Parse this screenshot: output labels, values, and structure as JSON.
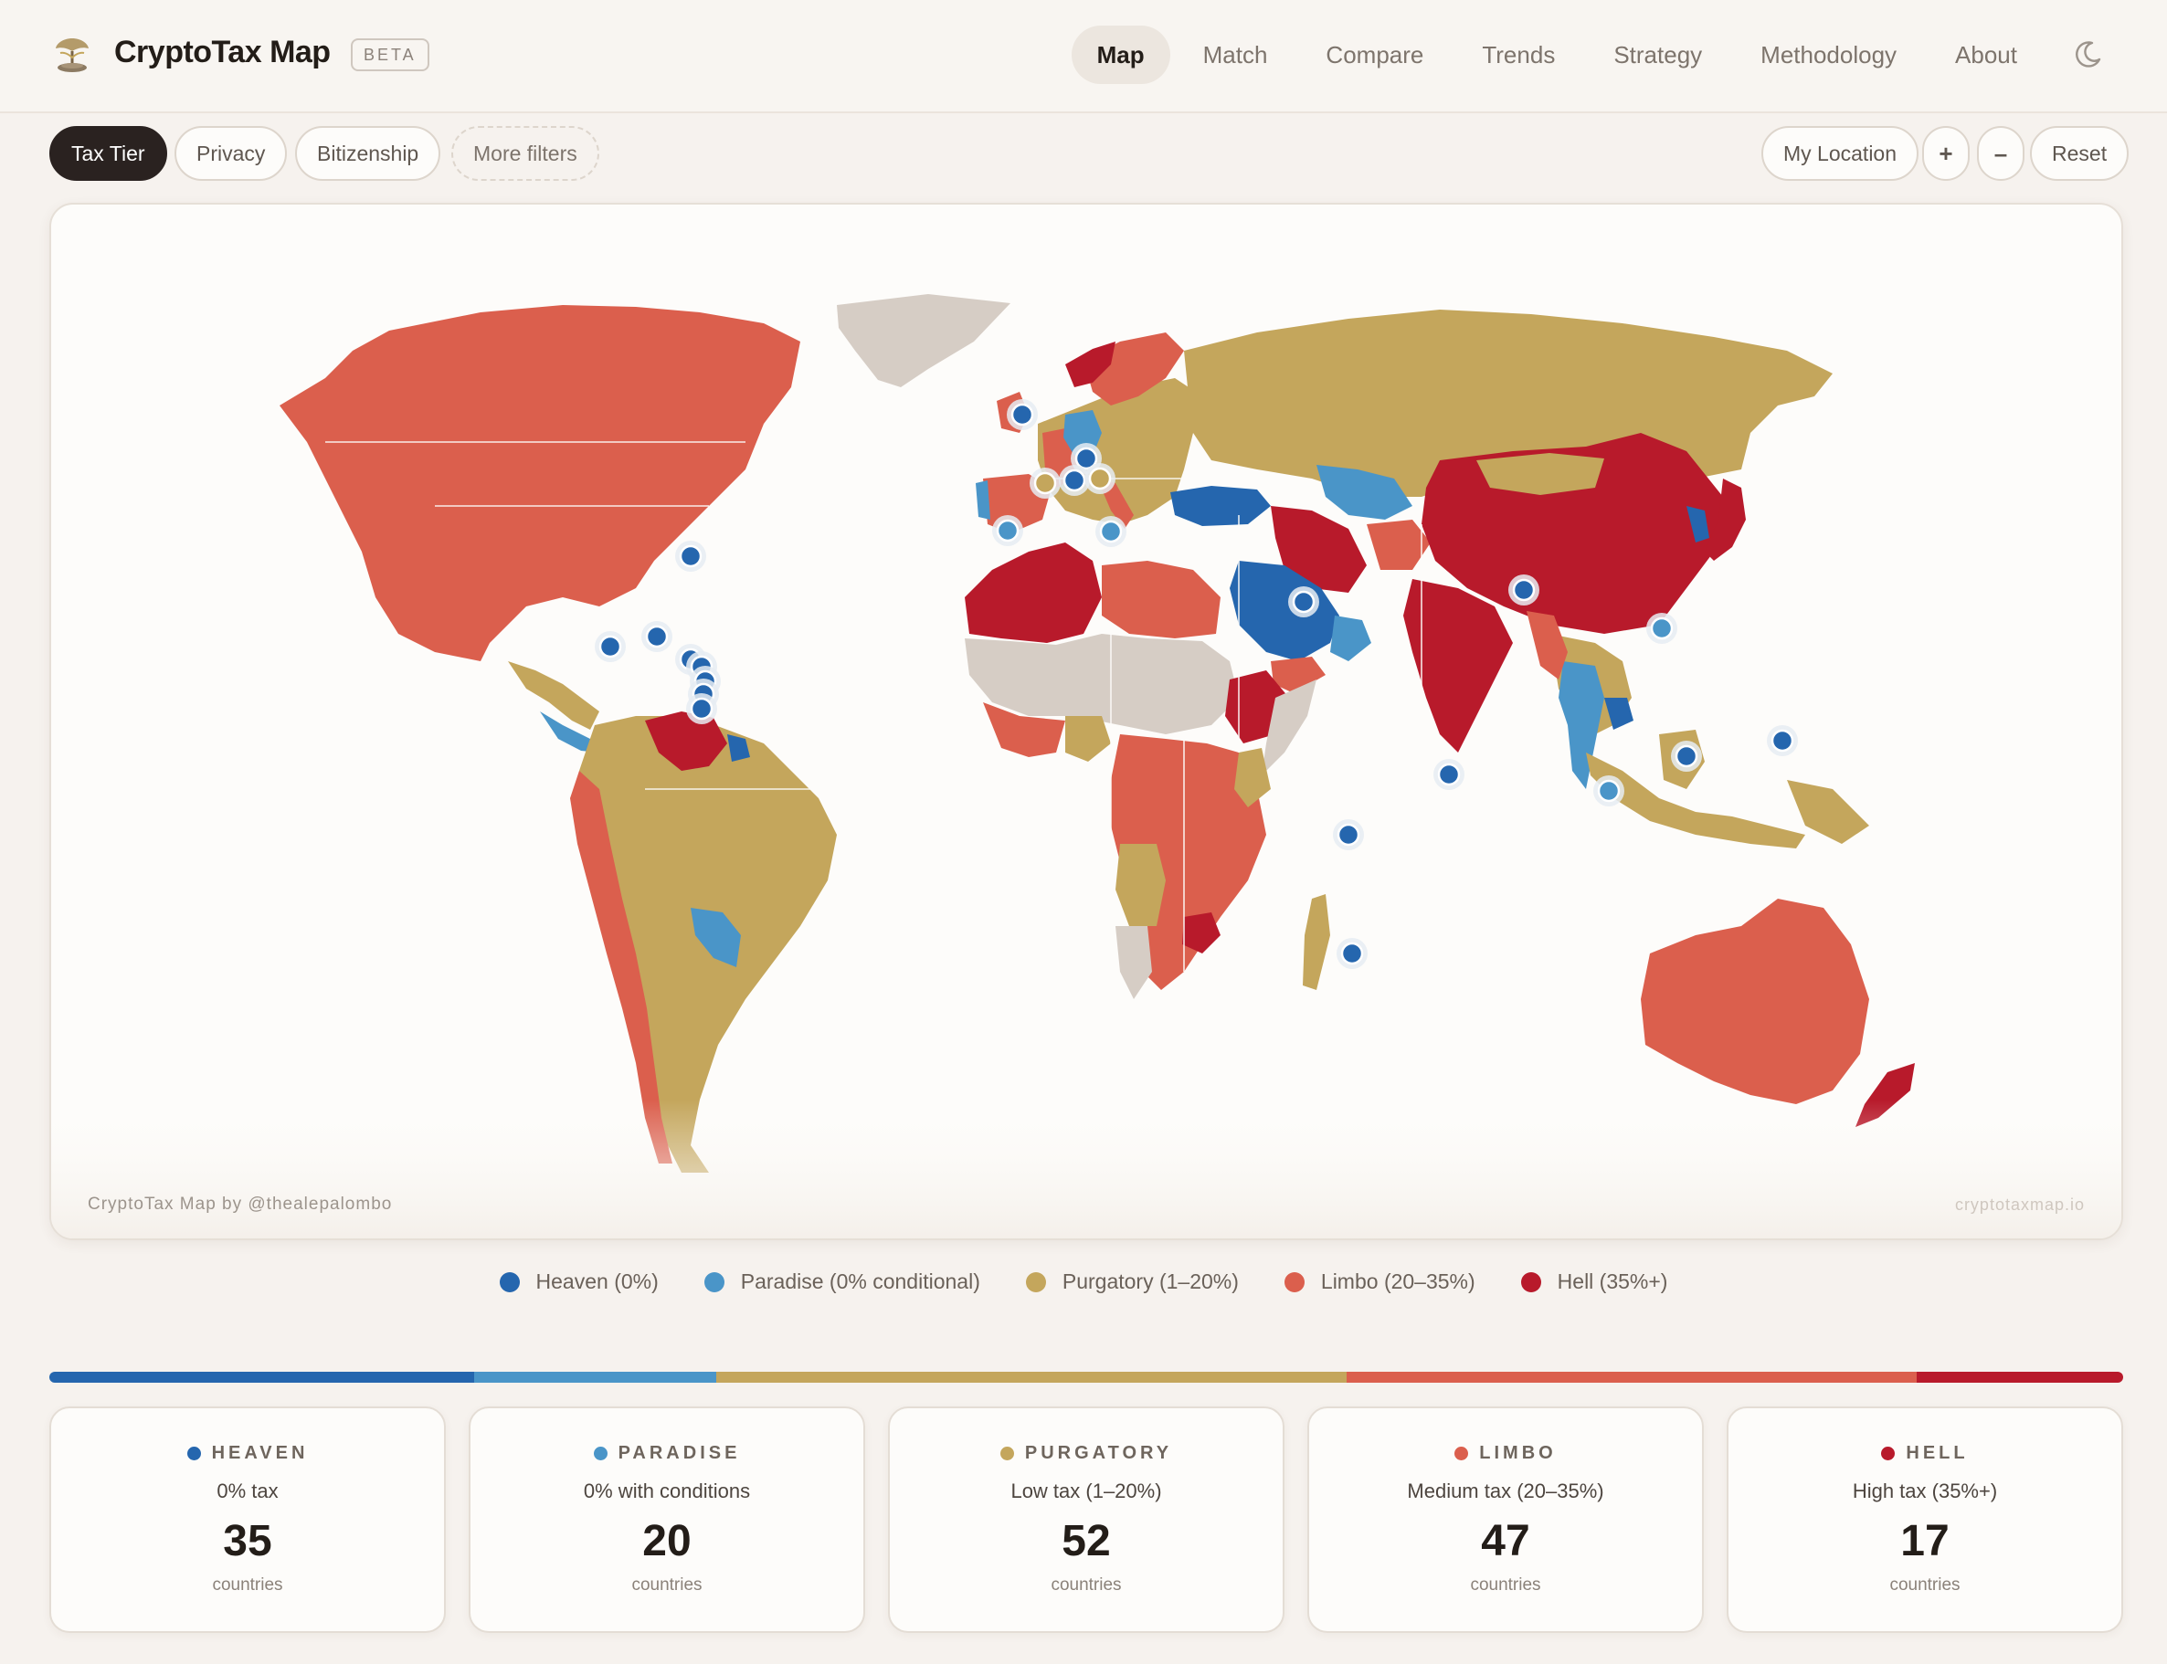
{
  "header": {
    "app_title": "CryptoTax Map",
    "badge": "BETA",
    "nav": [
      {
        "label": "Map",
        "active": true
      },
      {
        "label": "Match"
      },
      {
        "label": "Compare"
      },
      {
        "label": "Trends"
      },
      {
        "label": "Strategy"
      },
      {
        "label": "Methodology"
      },
      {
        "label": "About"
      }
    ],
    "theme_icon": "moon-icon"
  },
  "filters": {
    "tax_tier": "Tax Tier",
    "privacy": "Privacy",
    "bitizenship": "Bitizenship",
    "more": "More filters"
  },
  "map_controls": {
    "my_location": "My Location",
    "zoom_in": "+",
    "zoom_out": "–",
    "reset": "Reset"
  },
  "map": {
    "credit": "CryptoTax Map by @thealepalombo",
    "site": "cryptotaxmap.io"
  },
  "colors": {
    "heaven": "#2566ae",
    "paradise": "#4a95c8",
    "purgatory": "#c4a65c",
    "limbo": "#db5f4d",
    "hell": "#b81a2b",
    "nodata": "#d6cdc5"
  },
  "legend": [
    {
      "label": "Heaven (0%)",
      "tier": "heaven"
    },
    {
      "label": "Paradise (0% conditional)",
      "tier": "paradise"
    },
    {
      "label": "Purgatory (1–20%)",
      "tier": "purgatory"
    },
    {
      "label": "Limbo (20–35%)",
      "tier": "limbo"
    },
    {
      "label": "Hell (35%+)",
      "tier": "hell"
    }
  ],
  "tiers": [
    {
      "name": "HEAVEN",
      "tier": "heaven",
      "description": "0% tax",
      "count": 35,
      "unit": "countries"
    },
    {
      "name": "PARADISE",
      "tier": "paradise",
      "description": "0% with conditions",
      "count": 20,
      "unit": "countries"
    },
    {
      "name": "PURGATORY",
      "tier": "purgatory",
      "description": "Low tax (1–20%)",
      "count": 52,
      "unit": "countries"
    },
    {
      "name": "LIMBO",
      "tier": "limbo",
      "description": "Medium tax (20–35%)",
      "count": 47,
      "unit": "countries"
    },
    {
      "name": "HELL",
      "tier": "hell",
      "description": "High tax (35%+)",
      "count": 17,
      "unit": "countries"
    }
  ]
}
